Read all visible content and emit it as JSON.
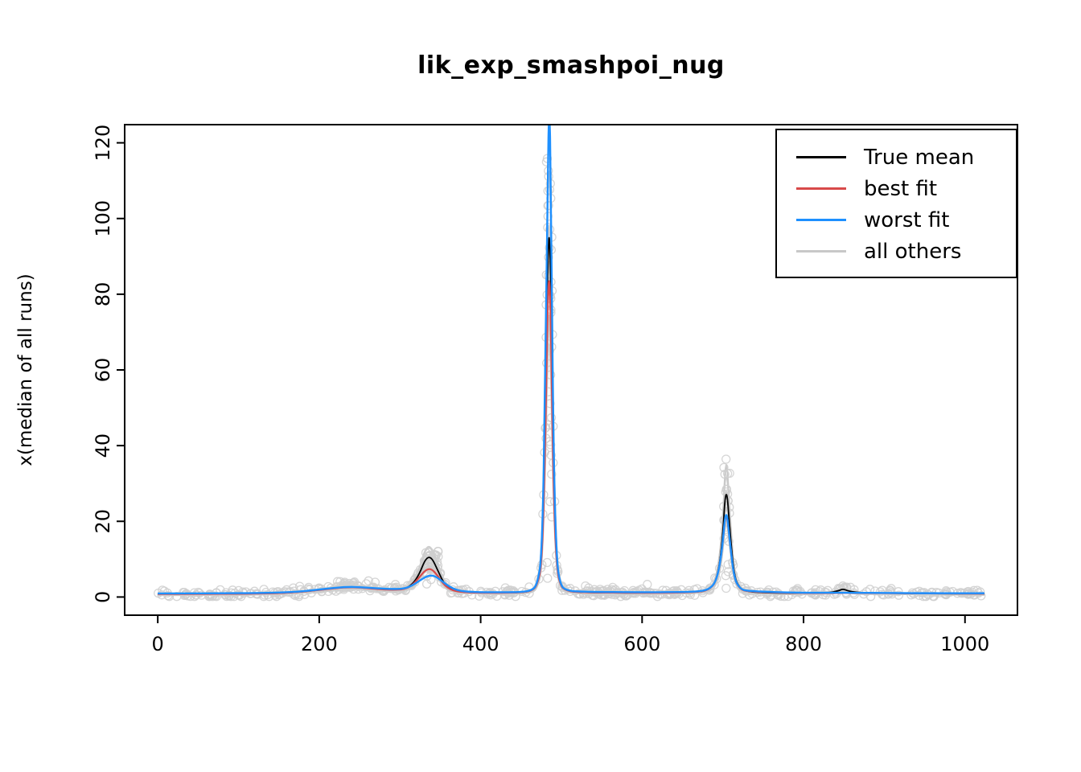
{
  "chart_data": {
    "type": "line",
    "title": "lik_exp_smashpoi_nug",
    "xlabel": "",
    "ylabel": "x(median of all runs)",
    "xlim": [
      -41,
      1065
    ],
    "ylim": [
      -4.8,
      124.8
    ],
    "xticks": [
      0,
      200,
      400,
      600,
      800,
      1000
    ],
    "yticks": [
      0,
      20,
      40,
      60,
      80,
      100,
      120
    ],
    "grid": false,
    "legend": {
      "position": "top-right",
      "items": [
        {
          "label": "True mean",
          "color": "#000000"
        },
        {
          "label": "best fit",
          "color": "#D84A4A"
        },
        {
          "label": "worst fit",
          "color": "#1E90FF"
        },
        {
          "label": "all others",
          "color": "#C8C8C8"
        }
      ]
    },
    "series": [
      {
        "name": "True mean",
        "color": "#000000",
        "width": 1.8,
        "points": [
          [
            0,
            0.8
          ],
          [
            40,
            0.8
          ],
          [
            80,
            0.85
          ],
          [
            120,
            0.9
          ],
          [
            150,
            1.0
          ],
          [
            180,
            1.4
          ],
          [
            205,
            2.0
          ],
          [
            233,
            2.7
          ],
          [
            252,
            2.6
          ],
          [
            272,
            2.2
          ],
          [
            290,
            1.9
          ],
          [
            305,
            2.1
          ],
          [
            315,
            3.2
          ],
          [
            324,
            6.0
          ],
          [
            332,
            10.3
          ],
          [
            339,
            10.6
          ],
          [
            347,
            7.0
          ],
          [
            354,
            3.8
          ],
          [
            362,
            2.1
          ],
          [
            372,
            1.4
          ],
          [
            390,
            1.15
          ],
          [
            420,
            1.1
          ],
          [
            450,
            1.2
          ],
          [
            463,
            1.6
          ],
          [
            470,
            3.0
          ],
          [
            476,
            10
          ],
          [
            480,
            45
          ],
          [
            483,
            88
          ],
          [
            485,
            98
          ],
          [
            487,
            82
          ],
          [
            490,
            35
          ],
          [
            494,
            9
          ],
          [
            499,
            3
          ],
          [
            506,
            1.7
          ],
          [
            520,
            1.25
          ],
          [
            560,
            1.1
          ],
          [
            600,
            1.1
          ],
          [
            640,
            1.15
          ],
          [
            668,
            1.3
          ],
          [
            682,
            1.8
          ],
          [
            692,
            4
          ],
          [
            699,
            13
          ],
          [
            704,
            31
          ],
          [
            709,
            17
          ],
          [
            714,
            5.5
          ],
          [
            721,
            2.2
          ],
          [
            731,
            1.4
          ],
          [
            755,
            1.1
          ],
          [
            800,
            1.0
          ],
          [
            830,
            1.1
          ],
          [
            843,
            1.6
          ],
          [
            849,
            2.2
          ],
          [
            856,
            1.5
          ],
          [
            872,
            1.1
          ],
          [
            910,
            1.0
          ],
          [
            960,
            0.9
          ],
          [
            1024,
            0.9
          ]
        ]
      },
      {
        "name": "best fit",
        "color": "#D84A4A",
        "width": 2.2,
        "points": [
          [
            0,
            0.8
          ],
          [
            40,
            0.8
          ],
          [
            80,
            0.85
          ],
          [
            120,
            0.9
          ],
          [
            150,
            1.0
          ],
          [
            180,
            1.4
          ],
          [
            205,
            2.0
          ],
          [
            233,
            2.6
          ],
          [
            252,
            2.5
          ],
          [
            272,
            2.1
          ],
          [
            290,
            1.9
          ],
          [
            305,
            2.0
          ],
          [
            315,
            3.0
          ],
          [
            324,
            5.2
          ],
          [
            332,
            7.2
          ],
          [
            339,
            7.5
          ],
          [
            347,
            5.6
          ],
          [
            354,
            3.4
          ],
          [
            362,
            2.0
          ],
          [
            372,
            1.4
          ],
          [
            390,
            1.15
          ],
          [
            420,
            1.1
          ],
          [
            450,
            1.2
          ],
          [
            463,
            1.6
          ],
          [
            470,
            3.0
          ],
          [
            476,
            9
          ],
          [
            480,
            40
          ],
          [
            483,
            78
          ],
          [
            485,
            86
          ],
          [
            487,
            72
          ],
          [
            490,
            30
          ],
          [
            494,
            8
          ],
          [
            499,
            2.8
          ],
          [
            506,
            1.7
          ],
          [
            520,
            1.25
          ],
          [
            600,
            1.1
          ],
          [
            640,
            1.15
          ],
          [
            668,
            1.3
          ],
          [
            682,
            1.8
          ],
          [
            692,
            4
          ],
          [
            699,
            12
          ],
          [
            704,
            24
          ],
          [
            709,
            14
          ],
          [
            714,
            5
          ],
          [
            721,
            2.1
          ],
          [
            731,
            1.4
          ],
          [
            800,
            1.0
          ],
          [
            850,
            1.1
          ],
          [
            910,
            1.0
          ],
          [
            1024,
            0.9
          ]
        ]
      },
      {
        "name": "worst fit",
        "color": "#1E90FF",
        "width": 2.4,
        "points": [
          [
            0,
            0.95
          ],
          [
            40,
            0.95
          ],
          [
            80,
            1.0
          ],
          [
            120,
            1.05
          ],
          [
            150,
            1.15
          ],
          [
            180,
            1.5
          ],
          [
            205,
            2.1
          ],
          [
            233,
            2.7
          ],
          [
            252,
            2.6
          ],
          [
            272,
            2.3
          ],
          [
            290,
            2.1
          ],
          [
            305,
            2.2
          ],
          [
            315,
            3.0
          ],
          [
            325,
            4.4
          ],
          [
            334,
            5.6
          ],
          [
            342,
            5.7
          ],
          [
            350,
            4.6
          ],
          [
            358,
            3.2
          ],
          [
            366,
            2.2
          ],
          [
            375,
            1.6
          ],
          [
            390,
            1.3
          ],
          [
            420,
            1.25
          ],
          [
            450,
            1.3
          ],
          [
            463,
            1.7
          ],
          [
            470,
            3.2
          ],
          [
            476,
            11
          ],
          [
            480,
            55
          ],
          [
            483,
            112
          ],
          [
            485,
            131
          ],
          [
            487,
            112
          ],
          [
            490,
            40
          ],
          [
            494,
            9.5
          ],
          [
            499,
            3
          ],
          [
            506,
            1.8
          ],
          [
            520,
            1.4
          ],
          [
            600,
            1.25
          ],
          [
            640,
            1.3
          ],
          [
            668,
            1.4
          ],
          [
            682,
            1.9
          ],
          [
            692,
            4
          ],
          [
            699,
            12
          ],
          [
            704,
            24.5
          ],
          [
            709,
            14
          ],
          [
            714,
            5
          ],
          [
            721,
            2.2
          ],
          [
            731,
            1.5
          ],
          [
            800,
            1.1
          ],
          [
            850,
            1.15
          ],
          [
            910,
            1.05
          ],
          [
            960,
            1.0
          ],
          [
            1024,
            1.0
          ]
        ]
      }
    ],
    "others_model": {
      "n_lines": 12,
      "color": "#C8C8C8",
      "width": 1.6,
      "seed": 11,
      "scale_min": 0.7,
      "scale_max": 1.35,
      "baseline": 0.8
    },
    "scatter_model": {
      "seed": 7,
      "n_baseline": 520,
      "jitter": 0.55,
      "color": "#CFCFCF",
      "radius": 5,
      "columns": [
        {
          "x": 485,
          "ymax": 117,
          "n": 42,
          "xjitter": 4
        },
        {
          "x": 705,
          "ymax": 37,
          "n": 20,
          "xjitter": 4
        },
        {
          "x": 340,
          "ymax": 13,
          "n": 26,
          "xjitter": 11
        },
        {
          "x": 233,
          "ymax": 4.2,
          "n": 14,
          "xjitter": 12
        },
        {
          "x": 849,
          "ymax": 2.6,
          "n": 6,
          "xjitter": 5
        }
      ]
    }
  }
}
